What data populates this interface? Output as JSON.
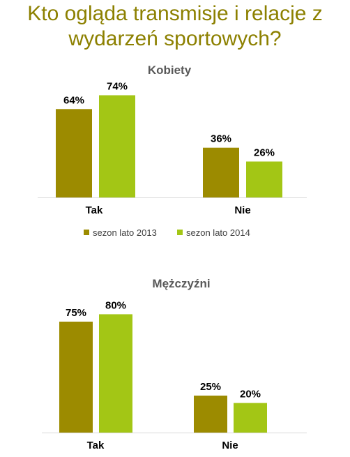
{
  "header": {
    "title_line1": "Kto ogląda transmisje i relacje z",
    "title_line2": "wydarzeń sportowych?"
  },
  "legend": [
    {
      "label": "sezon lato 2013",
      "color": "#9c8b00"
    },
    {
      "label": "sezon lato 2014",
      "color": "#a3c615"
    }
  ],
  "chart_data": [
    {
      "type": "bar",
      "title": "Kobiety",
      "categories": [
        "Tak",
        "Nie"
      ],
      "series": [
        {
          "name": "sezon lato 2013",
          "values": [
            64,
            36
          ],
          "labels": [
            "64%",
            "36%"
          ]
        },
        {
          "name": "sezon lato 2014",
          "values": [
            74,
            26
          ],
          "labels": [
            "74%",
            "26%"
          ]
        }
      ],
      "ylim": [
        0,
        100
      ],
      "grid": false,
      "legend": "bottom"
    },
    {
      "type": "bar",
      "title": "Mężczyźni",
      "categories": [
        "Tak",
        "Nie"
      ],
      "series": [
        {
          "name": "sezon lato 2013",
          "values": [
            75,
            25
          ],
          "labels": [
            "75%",
            "25%"
          ]
        },
        {
          "name": "sezon lato 2014",
          "values": [
            80,
            20
          ],
          "labels": [
            "80%",
            "20%"
          ]
        }
      ],
      "ylim": [
        0,
        100
      ],
      "grid": false
    }
  ]
}
